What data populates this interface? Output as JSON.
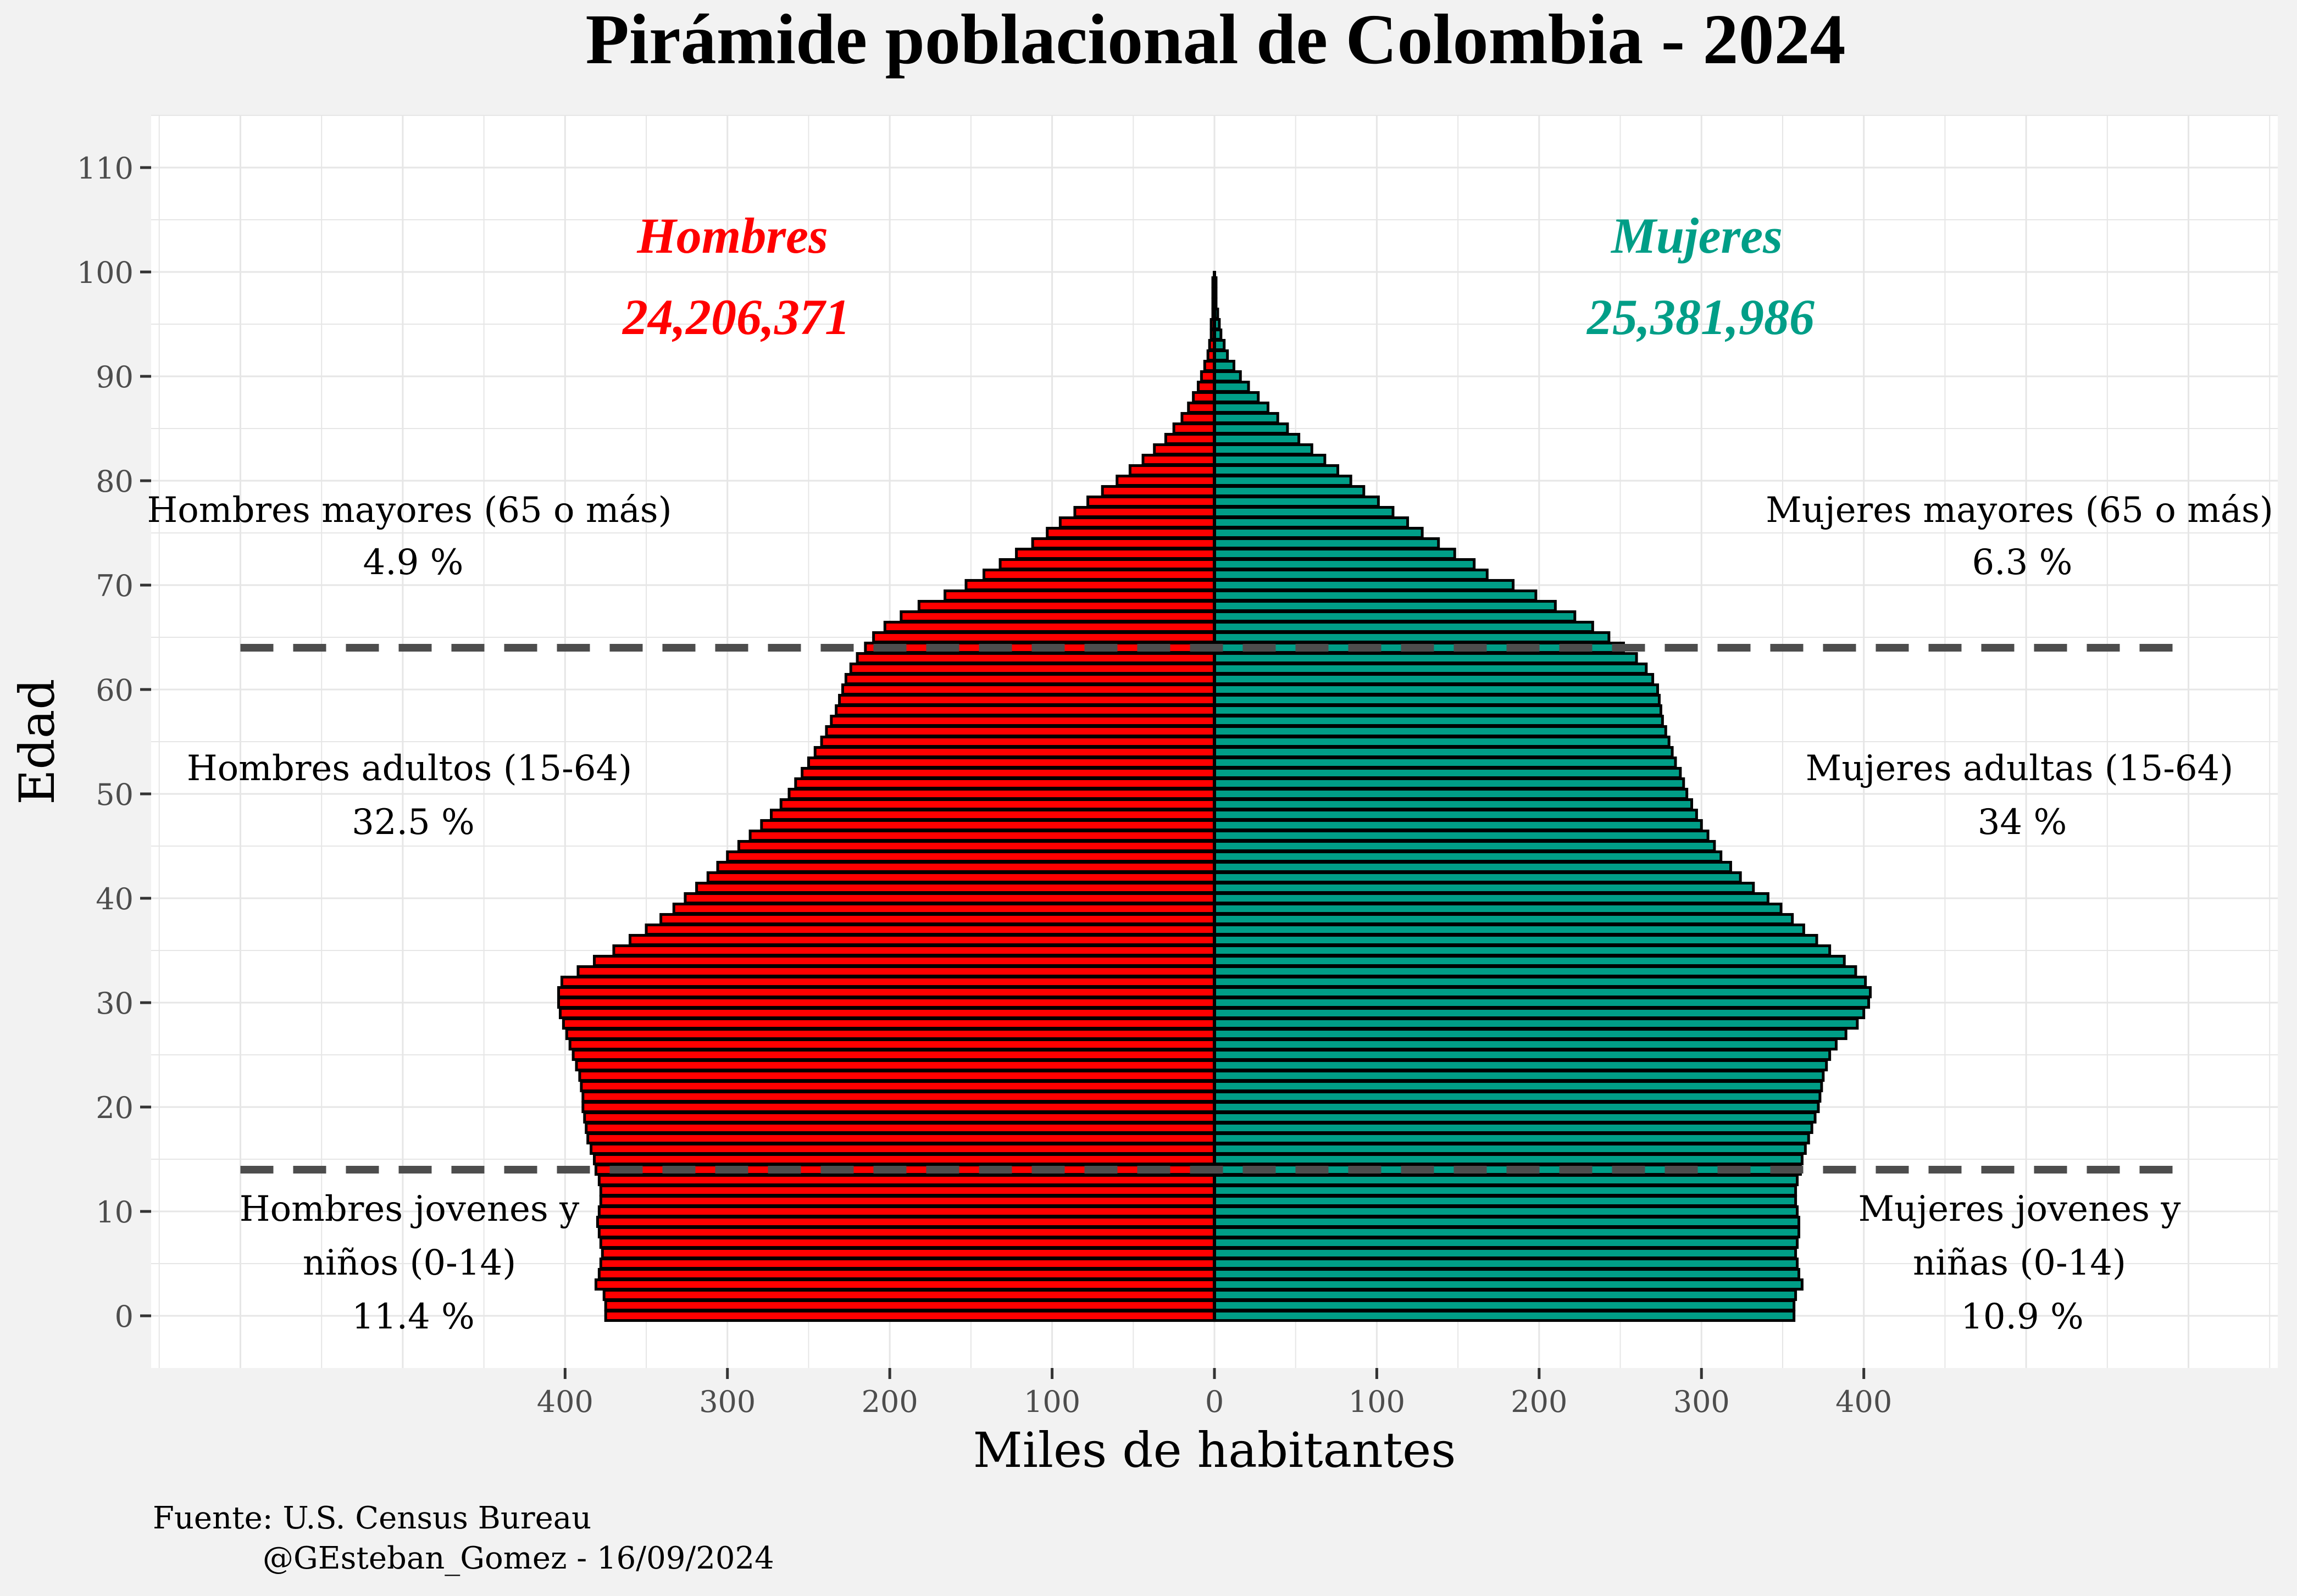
{
  "chart_data": {
    "type": "bar",
    "orientation": "horizontal",
    "title": "Pirámide poblacional de Colombia - 2024",
    "xlabel": "Miles de habitantes",
    "ylabel": "Edad",
    "xlim": [
      -655,
      655
    ],
    "ylim": [
      -5,
      115
    ],
    "x_ticks": [
      -400,
      -300,
      -200,
      -100,
      0,
      100,
      200,
      300,
      400
    ],
    "x_tick_labels": [
      "400",
      "300",
      "200",
      "100",
      "0",
      "100",
      "200",
      "300",
      "400"
    ],
    "y_ticks": [
      0,
      10,
      20,
      30,
      40,
      50,
      60,
      70,
      80,
      90,
      100,
      110
    ],
    "y_tick_labels": [
      "0",
      "10",
      "20",
      "30",
      "40",
      "50",
      "60",
      "70",
      "80",
      "90",
      "100",
      "110"
    ],
    "grid": true,
    "ages": [
      0,
      1,
      2,
      3,
      4,
      5,
      6,
      7,
      8,
      9,
      10,
      11,
      12,
      13,
      14,
      15,
      16,
      17,
      18,
      19,
      20,
      21,
      22,
      23,
      24,
      25,
      26,
      27,
      28,
      29,
      30,
      31,
      32,
      33,
      34,
      35,
      36,
      37,
      38,
      39,
      40,
      41,
      42,
      43,
      44,
      45,
      46,
      47,
      48,
      49,
      50,
      51,
      52,
      53,
      54,
      55,
      56,
      57,
      58,
      59,
      60,
      61,
      62,
      63,
      64,
      65,
      66,
      67,
      68,
      69,
      70,
      71,
      72,
      73,
      74,
      75,
      76,
      77,
      78,
      79,
      80,
      81,
      82,
      83,
      84,
      85,
      86,
      87,
      88,
      89,
      90,
      91,
      92,
      93,
      94,
      95,
      96,
      97,
      98,
      99,
      100
    ],
    "series": [
      {
        "name": "Hombres",
        "color": "#ff0000",
        "values": [
          375,
          375,
          376,
          381,
          379,
          378,
          377,
          378,
          379,
          380,
          379,
          378,
          378,
          379,
          381,
          382,
          384,
          386,
          387,
          388,
          389,
          389,
          390,
          391,
          393,
          395,
          397,
          399,
          401,
          403,
          404,
          404,
          402,
          392,
          382,
          370,
          360,
          350,
          341,
          333,
          326,
          319,
          312,
          306,
          300,
          293,
          286,
          279,
          273,
          267,
          262,
          258,
          254,
          250,
          246,
          242,
          239,
          236,
          233,
          231,
          229,
          227,
          224,
          220,
          215,
          210,
          203,
          193,
          182,
          166,
          153,
          142,
          132,
          122,
          112,
          103,
          95,
          86,
          78,
          69,
          60,
          52,
          44,
          37,
          30,
          25,
          20,
          16,
          13,
          10,
          8,
          6,
          4,
          3,
          2,
          2,
          1,
          1,
          1,
          1,
          0
        ]
      },
      {
        "name": "Mujeres",
        "color": "#009e87",
        "values": [
          357,
          357,
          358,
          362,
          360,
          359,
          358,
          359,
          360,
          360,
          359,
          358,
          358,
          359,
          361,
          362,
          364,
          366,
          368,
          370,
          372,
          373,
          374,
          375,
          377,
          379,
          383,
          389,
          396,
          400,
          403,
          404,
          401,
          395,
          388,
          379,
          371,
          363,
          356,
          349,
          341,
          332,
          324,
          318,
          312,
          308,
          304,
          300,
          297,
          294,
          291,
          289,
          287,
          284,
          282,
          280,
          278,
          276,
          275,
          274,
          273,
          270,
          266,
          260,
          252,
          243,
          233,
          222,
          210,
          198,
          184,
          168,
          160,
          148,
          138,
          128,
          119,
          110,
          101,
          92,
          84,
          76,
          68,
          60,
          52,
          45,
          39,
          33,
          27,
          21,
          16,
          12,
          8,
          6,
          4,
          3,
          2,
          1,
          1,
          1,
          0
        ]
      }
    ],
    "reference_lines": [
      {
        "age": 64,
        "style": "dashed"
      },
      {
        "age": 14,
        "style": "dashed"
      }
    ],
    "annotations": {
      "hombres": {
        "label": "Hombres",
        "total": "24,206,371"
      },
      "mujeres": {
        "label": "Mujeres",
        "total": "25,381,986"
      },
      "left_groups": [
        {
          "line1": "Hombres mayores (65 o más)",
          "line2": "4.9 %",
          "line3": ""
        },
        {
          "line1": "Hombres adultos (15-64)",
          "line2": "32.5 %",
          "line3": ""
        },
        {
          "line1": "Hombres jovenes y",
          "line2": "niños (0-14)",
          "line3": "11.4 %"
        }
      ],
      "right_groups": [
        {
          "line1": "Mujeres mayores (65 o más)",
          "line2": "6.3 %",
          "line3": ""
        },
        {
          "line1": "Mujeres adultas (15-64)",
          "line2": "34 %",
          "line3": ""
        },
        {
          "line1": "Mujeres jovenes y",
          "line2": "niñas (0-14)",
          "line3": "10.9 %"
        }
      ]
    }
  },
  "caption": {
    "source": "Fuente: U.S. Census Bureau",
    "credit": "@GEsteban_Gomez - 16/09/2024"
  },
  "colors": {
    "hombres": "#ff0000",
    "mujeres": "#009e87",
    "panel_background": "#ffffff",
    "plot_background": "#f2f2f2",
    "grid": "#e6e6e6",
    "reference_line": "#4d4d4d"
  }
}
